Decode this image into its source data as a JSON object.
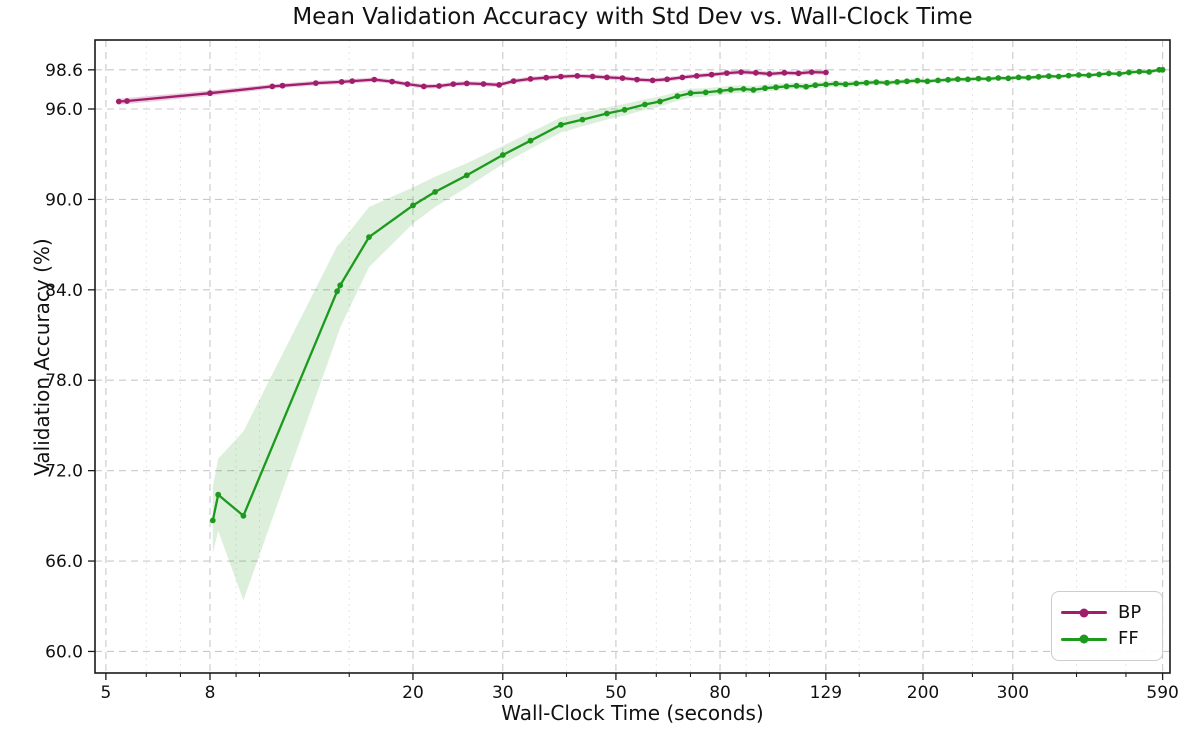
{
  "chart_data": {
    "type": "line",
    "title": "Mean Validation Accuracy with Std Dev vs. Wall-Clock Time",
    "xlabel": "Wall-Clock Time (seconds)",
    "ylabel": "Validation Accuracy (%)",
    "x_scale": "log",
    "grid": true,
    "legend_position": "lower right",
    "xlim": [
      4.76,
      610
    ],
    "ylim": [
      58.57,
      100.58
    ],
    "x_ticks": [
      5,
      8,
      20,
      30,
      50,
      80,
      129,
      200,
      300,
      590
    ],
    "x_tick_labels": [
      "5",
      "8",
      "20",
      "30",
      "50",
      "80",
      "129",
      "200",
      "300",
      "590"
    ],
    "x_minor_ticks": [
      6,
      7,
      9,
      10,
      15,
      40,
      60,
      70,
      90,
      100,
      150,
      250,
      400,
      500
    ],
    "y_ticks": [
      60.0,
      66.0,
      72.0,
      78.0,
      84.0,
      90.0,
      96.0,
      98.6
    ],
    "y_tick_labels": [
      "60.0",
      "66.0",
      "72.0",
      "78.0",
      "84.0",
      "90.0",
      "96.0",
      "98.6"
    ],
    "series": [
      {
        "name": "BP",
        "color": "#A01E6C",
        "band_opacity": 0.22,
        "x": [
          5.3,
          5.5,
          8.0,
          10.6,
          11.1,
          12.9,
          14.5,
          15.2,
          16.8,
          18.2,
          19.5,
          21.0,
          22.5,
          24.0,
          25.5,
          27.5,
          29.5,
          31.5,
          34.0,
          36.5,
          39.0,
          42.0,
          45.0,
          48.0,
          51.5,
          55.0,
          59.0,
          63.0,
          67.5,
          72.0,
          77.0,
          82.5,
          88.0,
          94.0,
          100.0,
          107.0,
          114.0,
          121.0,
          129.0
        ],
        "y": [
          96.5,
          96.53,
          97.05,
          97.5,
          97.55,
          97.72,
          97.8,
          97.85,
          97.95,
          97.82,
          97.65,
          97.5,
          97.53,
          97.65,
          97.7,
          97.66,
          97.6,
          97.85,
          98.0,
          98.08,
          98.15,
          98.2,
          98.16,
          98.1,
          98.05,
          97.95,
          97.9,
          97.97,
          98.1,
          98.2,
          98.28,
          98.38,
          98.45,
          98.4,
          98.33,
          98.4,
          98.37,
          98.45,
          98.42
        ],
        "std": [
          0.2,
          0.2,
          0.18,
          0.15,
          0.15,
          0.15,
          0.15,
          0.15,
          0.15,
          0.15,
          0.15,
          0.15,
          0.15,
          0.15,
          0.15,
          0.15,
          0.15,
          0.15,
          0.15,
          0.15,
          0.15,
          0.15,
          0.15,
          0.15,
          0.15,
          0.15,
          0.15,
          0.15,
          0.15,
          0.15,
          0.15,
          0.15,
          0.15,
          0.15,
          0.15,
          0.15,
          0.15,
          0.15,
          0.15
        ]
      },
      {
        "name": "FF",
        "color": "#1D9A1D",
        "band_opacity": 0.16,
        "x": [
          8.1,
          8.3,
          9.3,
          14.2,
          14.4,
          16.4,
          20,
          22.1,
          25.5,
          30,
          34,
          39,
          43,
          48,
          52,
          57,
          61,
          66,
          70,
          75,
          80,
          84,
          89,
          93,
          98,
          103,
          108,
          113,
          118,
          123,
          129,
          135,
          141,
          148,
          155,
          162,
          170,
          178,
          186,
          195,
          204,
          214,
          224,
          234,
          245,
          257,
          269,
          281,
          294,
          308,
          322,
          337,
          353,
          369,
          386,
          404,
          423,
          443,
          463,
          485,
          507,
          531,
          555,
          581,
          590
        ],
        "y": [
          68.7,
          70.4,
          69.0,
          83.9,
          84.3,
          87.5,
          89.6,
          90.5,
          91.6,
          92.95,
          93.9,
          94.95,
          95.3,
          95.7,
          95.95,
          96.3,
          96.5,
          96.85,
          97.05,
          97.1,
          97.2,
          97.28,
          97.33,
          97.27,
          97.38,
          97.44,
          97.5,
          97.54,
          97.48,
          97.58,
          97.63,
          97.68,
          97.64,
          97.7,
          97.74,
          97.78,
          97.74,
          97.8,
          97.84,
          97.88,
          97.84,
          97.9,
          97.94,
          97.98,
          97.97,
          98.02,
          98.0,
          98.06,
          98.04,
          98.1,
          98.08,
          98.14,
          98.18,
          98.16,
          98.22,
          98.26,
          98.24,
          98.3,
          98.36,
          98.34,
          98.42,
          98.48,
          98.46,
          98.6,
          98.6
        ],
        "std": [
          2.2,
          2.4,
          5.6,
          3.0,
          2.8,
          2.0,
          1.2,
          1.0,
          0.8,
          0.6,
          0.55,
          0.5,
          0.45,
          0.4,
          0.38,
          0.35,
          0.33,
          0.3,
          0.3,
          0.28,
          0.27,
          0.26,
          0.25,
          0.25,
          0.24,
          0.23,
          0.22,
          0.22,
          0.21,
          0.2,
          0.2,
          0.19,
          0.19,
          0.18,
          0.18,
          0.17,
          0.17,
          0.16,
          0.16,
          0.16,
          0.15,
          0.15,
          0.15,
          0.15,
          0.14,
          0.14,
          0.14,
          0.14,
          0.13,
          0.13,
          0.13,
          0.13,
          0.13,
          0.12,
          0.12,
          0.12,
          0.12,
          0.12,
          0.12,
          0.12,
          0.12,
          0.12,
          0.12,
          0.12,
          0.12
        ]
      }
    ],
    "style": {
      "grid_major_color": "#c9c9c9",
      "grid_minor_color": "#e6e6e6",
      "spine_color": "#1a1a1a",
      "text_color": "#111111",
      "background": "#ffffff"
    }
  }
}
